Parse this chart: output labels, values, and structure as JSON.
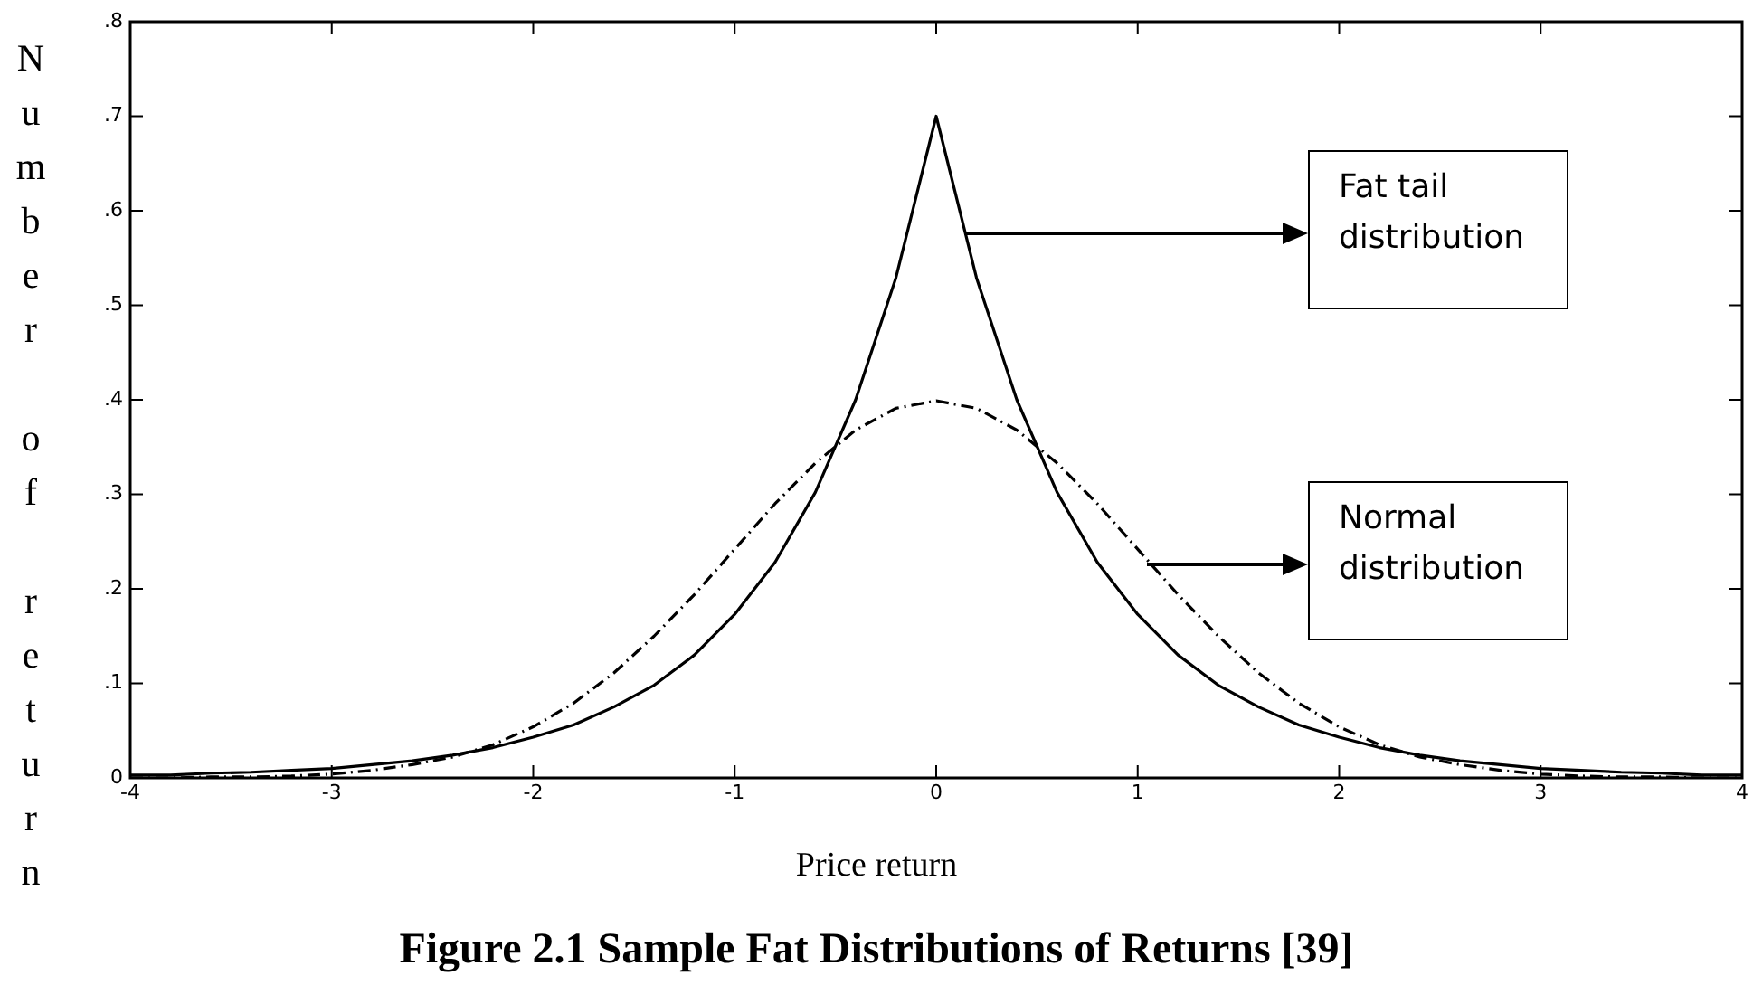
{
  "chart_data": {
    "type": "line",
    "title": "Figure 2.1 Sample Fat Distributions of Returns [39]",
    "xlabel": "Price return",
    "ylabel": "Number of return",
    "x": [
      -4,
      -3.8,
      -3.6,
      -3.4,
      -3.2,
      -3,
      -2.8,
      -2.6,
      -2.4,
      -2.2,
      -2,
      -1.8,
      -1.6,
      -1.4,
      -1.2,
      -1,
      -0.8,
      -0.6,
      -0.4,
      -0.2,
      0,
      0.2,
      0.4,
      0.6,
      0.8,
      1,
      1.2,
      1.4,
      1.6,
      1.8,
      2,
      2.2,
      2.4,
      2.6,
      2.8,
      3,
      3.2,
      3.4,
      3.6,
      3.8,
      4
    ],
    "series": [
      {
        "color": "#000000",
        "line_style": "solid",
        "values": [
          0.003,
          0.003,
          0.005,
          0.006,
          0.008,
          0.01,
          0.014,
          0.018,
          0.024,
          0.032,
          0.043,
          0.056,
          0.075,
          0.098,
          0.13,
          0.173,
          0.228,
          0.302,
          0.4,
          0.529,
          0.7,
          0.529,
          0.4,
          0.302,
          0.228,
          0.173,
          0.13,
          0.098,
          0.075,
          0.056,
          0.043,
          0.032,
          0.024,
          0.018,
          0.014,
          0.01,
          0.008,
          0.006,
          0.005,
          0.003,
          0.003
        ]
      },
      {
        "color": "#000000",
        "line_style": "dashed",
        "values": [
          0,
          0,
          0.001,
          0.001,
          0.002,
          0.004,
          0.008,
          0.014,
          0.022,
          0.035,
          0.054,
          0.079,
          0.111,
          0.15,
          0.194,
          0.242,
          0.29,
          0.333,
          0.368,
          0.391,
          0.399,
          0.391,
          0.368,
          0.333,
          0.29,
          0.242,
          0.194,
          0.15,
          0.111,
          0.079,
          0.054,
          0.035,
          0.022,
          0.014,
          0.008,
          0.004,
          0.002,
          0.001,
          0.001,
          0,
          0
        ]
      }
    ],
    "xlim": [
      -4,
      4
    ],
    "ylim": [
      0,
      0.8
    ],
    "xticks": [
      -4,
      -3,
      -2,
      -1,
      0,
      1,
      2,
      3,
      4
    ],
    "yticks": [
      {
        "value": 0,
        "label": "0"
      },
      {
        "value": 0.1,
        "label": ".1"
      },
      {
        "value": 0.2,
        "label": ".2"
      },
      {
        "value": 0.3,
        "label": ".3"
      },
      {
        "value": 0.4,
        "label": ".4"
      },
      {
        "value": 0.5,
        "label": ".5"
      },
      {
        "value": 0.6,
        "label": ".6"
      },
      {
        "value": 0.7,
        "label": ".7"
      },
      {
        "value": 0.8,
        "label": ".8"
      }
    ],
    "annotations": [
      "Fat tail distribution",
      "Normal distribution"
    ],
    "grid": false,
    "legend": false,
    "marker": "none"
  }
}
